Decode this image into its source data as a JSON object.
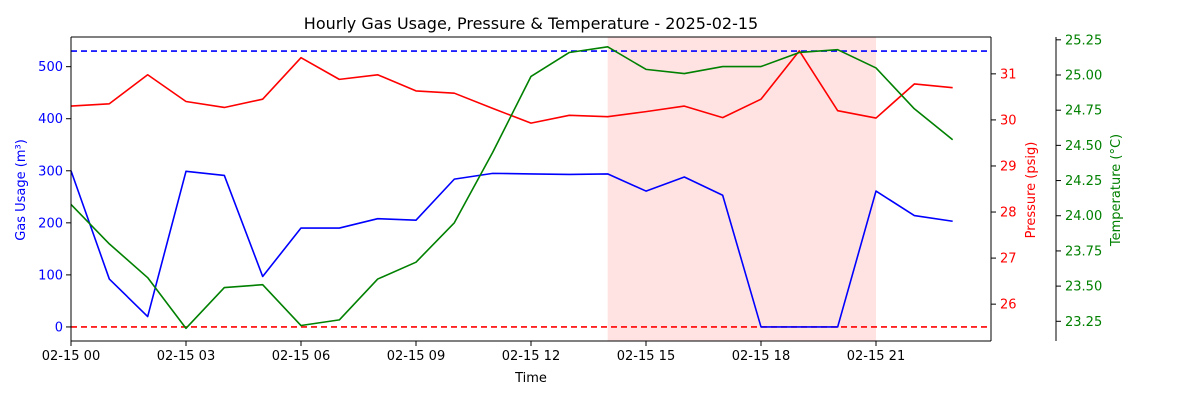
{
  "chart_data": {
    "type": "line",
    "title": "Hourly Gas Usage, Pressure & Temperature - 2025-02-15",
    "xlabel": "Time",
    "x_ticks": [
      "02-15 00",
      "02-15 03",
      "02-15 06",
      "02-15 09",
      "02-15 12",
      "02-15 15",
      "02-15 18",
      "02-15 21"
    ],
    "x_tick_hours": [
      0,
      3,
      6,
      9,
      12,
      15,
      18,
      21
    ],
    "xlim_hours": [
      0,
      24
    ],
    "hours": [
      0,
      1,
      2,
      3,
      4,
      5,
      6,
      7,
      8,
      9,
      10,
      11,
      12,
      13,
      14,
      15,
      16,
      17,
      18,
      19,
      20,
      21,
      22,
      23
    ],
    "shaded_span_hours": [
      14,
      21
    ],
    "shaded_color": "#ffcccc",
    "axes": {
      "gas": {
        "label": "Gas Usage (m³)",
        "color": "#0000ff",
        "ylim": [
          -27,
          557
        ],
        "ticks": [
          0,
          100,
          200,
          300,
          400,
          500
        ]
      },
      "pressure": {
        "label": "Pressure (psig)",
        "color": "#ff0000",
        "ylim": [
          25.2,
          31.8
        ],
        "ticks": [
          26,
          27,
          28,
          29,
          30,
          31
        ]
      },
      "temperature": {
        "label": "Temperature (°C)",
        "color": "#008000",
        "ylim": [
          23.11,
          25.27
        ],
        "ticks": [
          "23.25",
          "23.50",
          "23.75",
          "24.00",
          "24.25",
          "24.50",
          "24.75",
          "25.00",
          "25.25"
        ]
      }
    },
    "series": [
      {
        "name": "Gas Usage (m³)",
        "axis": "gas",
        "color": "#0000ff",
        "values": [
          300,
          92,
          20,
          299,
          291,
          97,
          190,
          190,
          208,
          205,
          284,
          295,
          294,
          293,
          294,
          261,
          288,
          253,
          0,
          0,
          0,
          261,
          214,
          203
        ]
      },
      {
        "name": "Pressure (psig)",
        "axis": "pressure",
        "color": "#ff0000",
        "values": [
          30.3,
          30.35,
          30.98,
          30.4,
          30.27,
          30.45,
          31.35,
          30.88,
          30.98,
          30.63,
          30.58,
          30.25,
          29.93,
          30.1,
          30.07,
          30.18,
          30.3,
          30.05,
          30.45,
          31.5,
          30.2,
          30.04,
          30.78,
          30.7
        ]
      },
      {
        "name": "Temperature (°C)",
        "axis": "temperature",
        "color": "#008000",
        "values": [
          24.08,
          23.8,
          23.56,
          23.2,
          23.49,
          23.51,
          23.22,
          23.26,
          23.55,
          23.67,
          23.95,
          24.45,
          24.99,
          25.16,
          25.2,
          25.04,
          25.01,
          25.06,
          25.06,
          25.16,
          25.18,
          25.05,
          24.76,
          24.54
        ]
      }
    ],
    "reference_lines": [
      {
        "axis": "gas",
        "value": 530,
        "color": "#0000ff",
        "style": "dashed"
      },
      {
        "axis": "gas",
        "value": 0,
        "color": "#ff0000",
        "style": "dashed"
      }
    ],
    "grid": false
  }
}
